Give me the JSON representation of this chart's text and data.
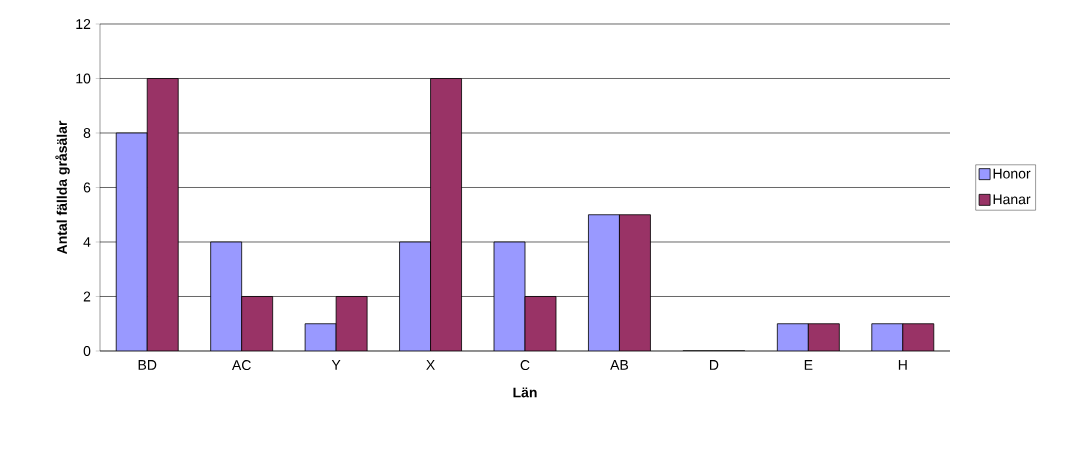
{
  "chart_data": {
    "type": "bar",
    "xlabel": "Län",
    "ylabel": "Antal fällda gråsälar",
    "categories": [
      "BD",
      "AC",
      "Y",
      "X",
      "C",
      "AB",
      "D",
      "E",
      "H"
    ],
    "series": [
      {
        "name": "Honor",
        "color": "#9999ff",
        "values": [
          8,
          4,
          1,
          4,
          4,
          5,
          0,
          1,
          1
        ]
      },
      {
        "name": "Hanar",
        "color": "#993366",
        "values": [
          10,
          2,
          2,
          10,
          2,
          5,
          0,
          1,
          1
        ]
      }
    ],
    "ylim": [
      0,
      12
    ],
    "yticks": [
      0,
      2,
      4,
      6,
      8,
      10,
      12
    ],
    "grid": "y",
    "legend": "right"
  }
}
